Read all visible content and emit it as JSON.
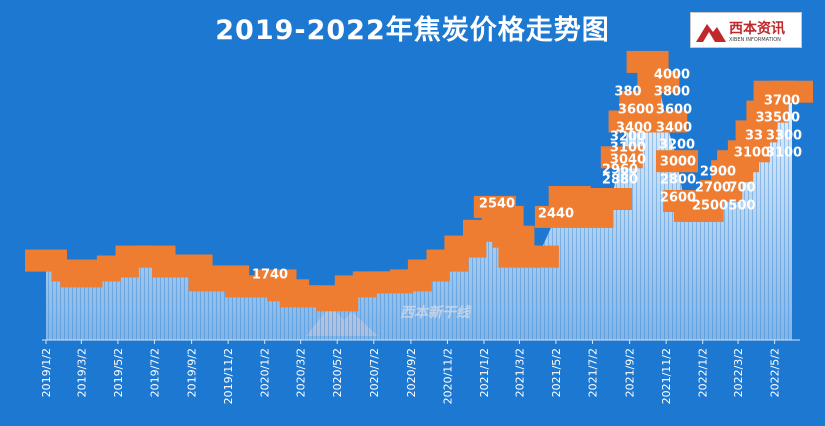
{
  "header": {
    "title": "2019-2022年焦炭价格走势图"
  },
  "logo": {
    "name": "西本资讯",
    "subtitle": "XIBEN INFORMATION"
  },
  "watermark": {
    "text": "西本新干线"
  },
  "colors": {
    "background": "#1d78d2",
    "area": "#ffffff",
    "label_box": "#ee7d32",
    "label_text": "#ffffff"
  },
  "chart_data": {
    "type": "area",
    "title": "2019-2022年焦炭价格走势图",
    "xlabel": "",
    "ylabel": "",
    "ylim": [
      1200,
      4100
    ],
    "grid": false,
    "legend": "none",
    "x_ticks": [
      "2019/1/2",
      "2019/3/2",
      "2019/5/2",
      "2019/7/2",
      "2019/9/2",
      "2019/11/2",
      "2020/1/2",
      "2020/3/2",
      "2020/5/2",
      "2020/7/2",
      "2020/9/2",
      "2020/11/2",
      "2021/1/2",
      "2021/3/2",
      "2021/5/2",
      "2021/7/2",
      "2021/9/2",
      "2021/11/2",
      "2022/1/2",
      "2022/3/2",
      "2022/5/2"
    ],
    "series": [
      {
        "x": [
          "2019/1/2",
          "2019/2/15",
          "2019/3/2",
          "2019/4/2",
          "2019/5/2",
          "2019/6/2",
          "2019/7/2",
          "2019/8/2",
          "2019/9/2",
          "2019/10/2",
          "2019/11/2",
          "2019/12/2",
          "2020/1/2",
          "2020/1/20",
          "2020/2/10",
          "2020/3/2",
          "2020/4/2",
          "2020/5/2",
          "2020/6/2",
          "2020/7/2",
          "2020/8/2",
          "2020/9/2",
          "2020/10/2",
          "2020/11/2",
          "2020/12/2",
          "2021/1/2",
          "2021/1/20",
          "2021/2/2",
          "2021/2/20",
          "2021/3/2",
          "2021/4/2",
          "2021/5/2",
          "2021/5/25",
          "2021/6/15",
          "2021/7/2",
          "2021/8/2",
          "2021/8/20",
          "2021/9/2",
          "2021/9/20",
          "2021/10/2",
          "2021/10/20",
          "2021/11/2",
          "2021/11/20",
          "2021/12/2",
          "2021/12/20",
          "2022/1/2",
          "2022/2/2",
          "2022/2/20",
          "2022/3/2",
          "2022/3/20",
          "2022/4/2",
          "2022/4/20",
          "2022/5/2",
          "2022/5/31"
        ],
        "y": [
          2000,
          1900,
          1840,
          1900,
          1940,
          2040,
          2040,
          1940,
          1950,
          1800,
          1840,
          1740,
          1740,
          1800,
          1700,
          1640,
          1640,
          1600,
          1740,
          1780,
          1780,
          1800,
          1900,
          2000,
          2140,
          2300,
          2540,
          2440,
          2240,
          2040,
          2040,
          2440,
          2640,
          2560,
          2440,
          2620,
          3040,
          3400,
          3600,
          4000,
          3800,
          3400,
          3000,
          2600,
          2500,
          2500,
          2700,
          2900,
          3000,
          3100,
          3300,
          3500,
          3700,
          3700
        ]
      }
    ],
    "data_labels": [
      "1740",
      "2540",
      "2440",
      "2960",
      "2880",
      "3040",
      "3100",
      "3200",
      "380",
      "3400",
      "3600",
      "4000",
      "3800",
      "3600",
      "3400",
      "3200",
      "3000",
      "2800",
      "2600",
      "2900",
      "2700",
      "2500",
      "700",
      "500",
      "3100",
      "33",
      "3",
      "3700",
      "3500",
      "3300",
      "3100"
    ]
  }
}
